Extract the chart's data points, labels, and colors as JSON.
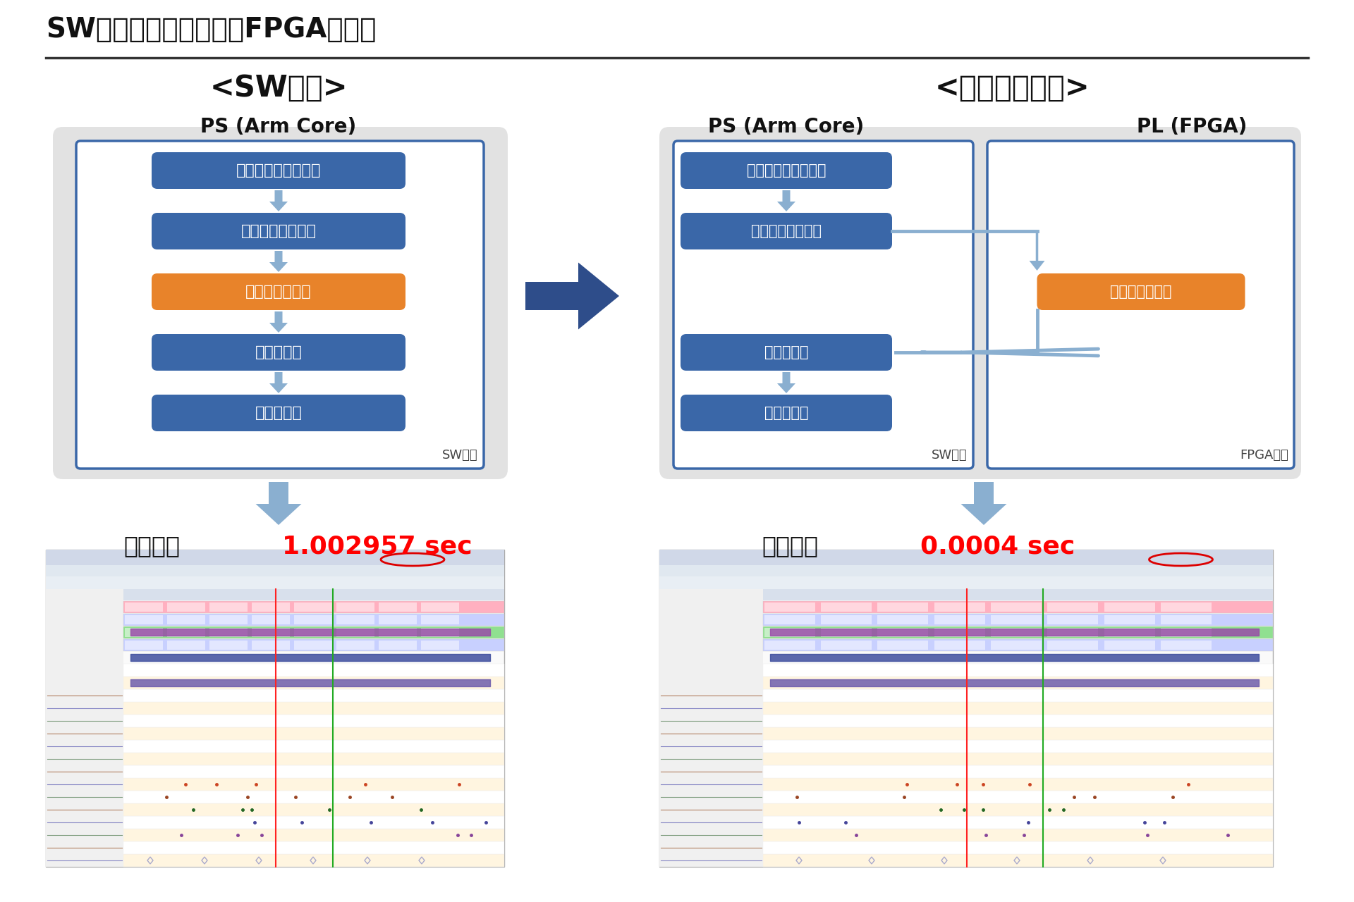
{
  "title": "SW処理から一部処理をFPGA処理化",
  "left_section_title": "<SW処理>",
  "right_section_title": "<高位合成処理>",
  "left_ps_label": "PS (Arm Core)",
  "right_ps_label": "PS (Arm Core)",
  "right_pl_label": "PL (FPGA)",
  "left_sw_label": "SW処理",
  "right_sw_label": "SW処理",
  "right_fpga_label": "FPGA処理",
  "left_boxes": [
    "フレームデータ取得",
    "センサデータ取得",
    "データ演算処理",
    "データ補正",
    "結果書込み"
  ],
  "right_ps_boxes": [
    "フレームデータ取得",
    "センサデータ取得",
    "データ補正",
    "結果書込み"
  ],
  "right_pl_boxes": [
    "データ演算処理"
  ],
  "blue_color": "#3A67A8",
  "orange_color": "#E8832A",
  "light_blue_arrow": "#8AAFD0",
  "dark_blue_arrow": "#2E4D8A",
  "bg_color": "#FFFFFF",
  "gray_box_color": "#E2E2E2",
  "left_time_label": "実行時間",
  "left_time_value": "1.002957 sec",
  "right_time_label": "実行時間",
  "right_time_value": "0.0004 sec",
  "time_value_color": "#FF0000"
}
